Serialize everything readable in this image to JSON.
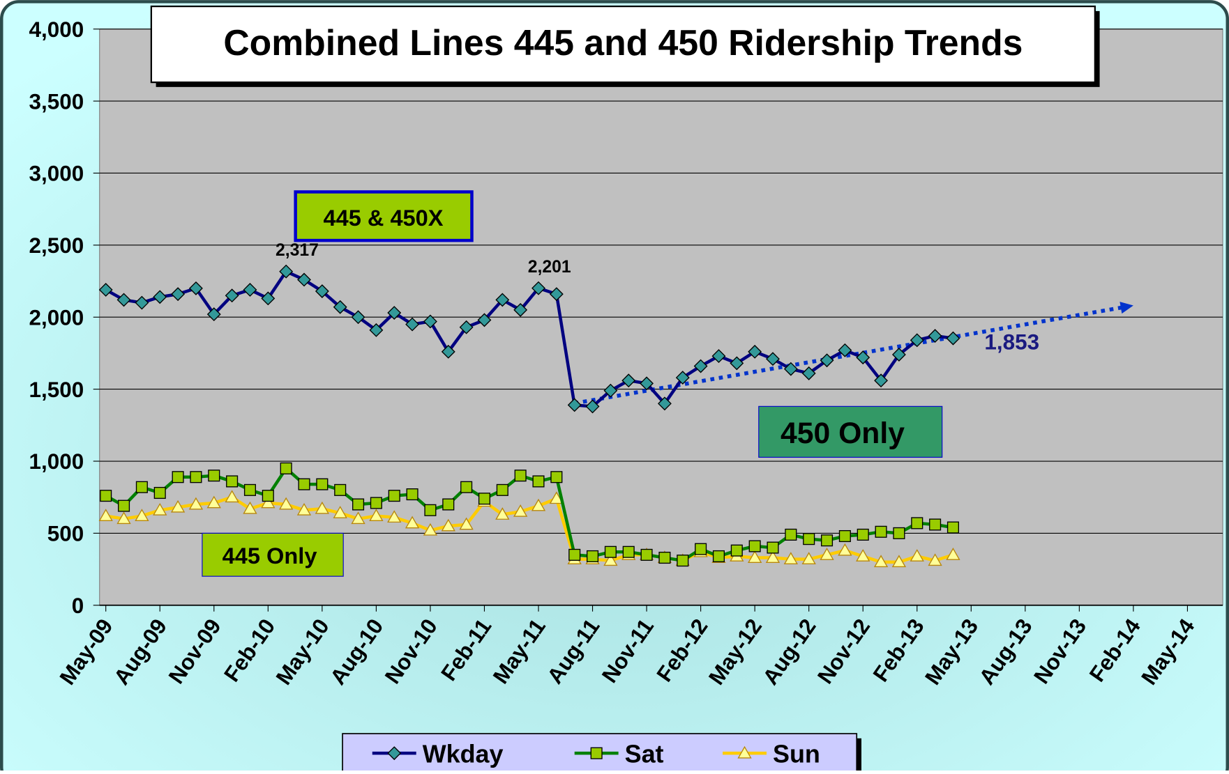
{
  "chart_data": {
    "type": "line",
    "title": "Combined Lines 445 and 450 Ridership Trends",
    "x": [
      "2009-05",
      "2009-06",
      "2009-07",
      "2009-08",
      "2009-09",
      "2009-10",
      "2009-11",
      "2009-12",
      "2010-01",
      "2010-02",
      "2010-03",
      "2010-04",
      "2010-05",
      "2010-06",
      "2010-07",
      "2010-08",
      "2010-09",
      "2010-10",
      "2010-11",
      "2010-12",
      "2011-01",
      "2011-02",
      "2011-03",
      "2011-04",
      "2011-05",
      "2011-06",
      "2011-07",
      "2011-08",
      "2011-09",
      "2011-10",
      "2011-11",
      "2011-12",
      "2012-01",
      "2012-02",
      "2012-03",
      "2012-04",
      "2012-05",
      "2012-06",
      "2012-07",
      "2012-08",
      "2012-09",
      "2012-10",
      "2012-11",
      "2012-12",
      "2013-01",
      "2013-02",
      "2013-03",
      "2013-04"
    ],
    "series": [
      {
        "name": "Wkday",
        "color": "#000080",
        "marker_color": "#339999",
        "values": [
          2190,
          2120,
          2100,
          2140,
          2160,
          2200,
          2020,
          2150,
          2190,
          2130,
          2317,
          2260,
          2180,
          2070,
          2000,
          1910,
          2030,
          1950,
          1970,
          1760,
          1930,
          1980,
          2120,
          2050,
          2201,
          2160,
          1390,
          1380,
          1490,
          1560,
          1540,
          1400,
          1580,
          1660,
          1730,
          1680,
          1760,
          1710,
          1640,
          1610,
          1700,
          1770,
          1720,
          1560,
          1740,
          1840,
          1870,
          1853
        ],
        "value_labels": [
          null,
          null,
          null,
          null,
          null,
          null,
          null,
          null,
          null,
          null,
          "2,317",
          null,
          null,
          null,
          null,
          null,
          null,
          null,
          null,
          null,
          null,
          null,
          null,
          null,
          "2,201",
          null,
          null,
          null,
          null,
          null,
          null,
          null,
          null,
          null,
          null,
          null,
          null,
          null,
          null,
          null,
          null,
          null,
          null,
          null,
          null,
          null,
          null,
          "1,853"
        ]
      },
      {
        "name": "Sat",
        "color": "#008000",
        "marker_color": "#99cc00",
        "values": [
          760,
          690,
          820,
          780,
          890,
          890,
          900,
          860,
          800,
          760,
          950,
          840,
          840,
          800,
          700,
          710,
          760,
          770,
          660,
          700,
          820,
          740,
          800,
          900,
          860,
          890,
          350,
          340,
          370,
          370,
          350,
          330,
          310,
          390,
          340,
          380,
          410,
          400,
          490,
          460,
          450,
          480,
          490,
          510,
          500,
          570,
          560,
          540
        ]
      },
      {
        "name": "Sun",
        "color": "#ffcc00",
        "marker_color": "#ffff99",
        "values": [
          620,
          600,
          620,
          660,
          680,
          700,
          710,
          750,
          670,
          710,
          700,
          660,
          670,
          640,
          600,
          620,
          610,
          570,
          520,
          550,
          560,
          720,
          630,
          650,
          690,
          740,
          320,
          320,
          310,
          350,
          350,
          330,
          310,
          370,
          330,
          340,
          330,
          330,
          320,
          320,
          350,
          380,
          340,
          300,
          300,
          340,
          310,
          350
        ]
      }
    ],
    "trendline": {
      "color": "#0033cc",
      "x": [
        "2011-07",
        "2014-02"
      ],
      "values": [
        1402,
        2081
      ]
    },
    "annotations": [
      "445 & 450X",
      "450 Only",
      "445 Only"
    ],
    "xlim": [
      "2009-05",
      "2014-05"
    ],
    "xticks": [
      {
        "value": "2009-05",
        "label": "May-09"
      },
      {
        "value": "2009-08",
        "label": "Aug-09"
      },
      {
        "value": "2009-11",
        "label": "Nov-09"
      },
      {
        "value": "2010-02",
        "label": "Feb-10"
      },
      {
        "value": "2010-05",
        "label": "May-10"
      },
      {
        "value": "2010-08",
        "label": "Aug-10"
      },
      {
        "value": "2010-11",
        "label": "Nov-10"
      },
      {
        "value": "2011-02",
        "label": "Feb-11"
      },
      {
        "value": "2011-05",
        "label": "May-11"
      },
      {
        "value": "2011-08",
        "label": "Aug-11"
      },
      {
        "value": "2011-11",
        "label": "Nov-11"
      },
      {
        "value": "2012-02",
        "label": "Feb-12"
      },
      {
        "value": "2012-05",
        "label": "May-12"
      },
      {
        "value": "2012-08",
        "label": "Aug-12"
      },
      {
        "value": "2012-11",
        "label": "Nov-12"
      },
      {
        "value": "2013-02",
        "label": "Feb-13"
      },
      {
        "value": "2013-05",
        "label": "May-13"
      },
      {
        "value": "2013-08",
        "label": "Aug-13"
      },
      {
        "value": "2013-11",
        "label": "Nov-13"
      },
      {
        "value": "2014-02",
        "label": "Feb-14"
      },
      {
        "value": "2014-05",
        "label": "May-14"
      }
    ],
    "ylim": [
      0,
      4000
    ],
    "yticks": [
      0,
      500,
      {
        "value": 1000,
        "label": "1,000"
      },
      {
        "value": 1500,
        "label": "1,500"
      },
      {
        "value": 2000,
        "label": "2,000"
      },
      {
        "value": 2500,
        "label": "2,500"
      },
      {
        "value": 3000,
        "label": "3,000"
      },
      {
        "value": 3500,
        "label": "3,500"
      },
      {
        "value": 4000,
        "label": "4,000"
      }
    ],
    "grid": true,
    "legend": "bottom"
  }
}
